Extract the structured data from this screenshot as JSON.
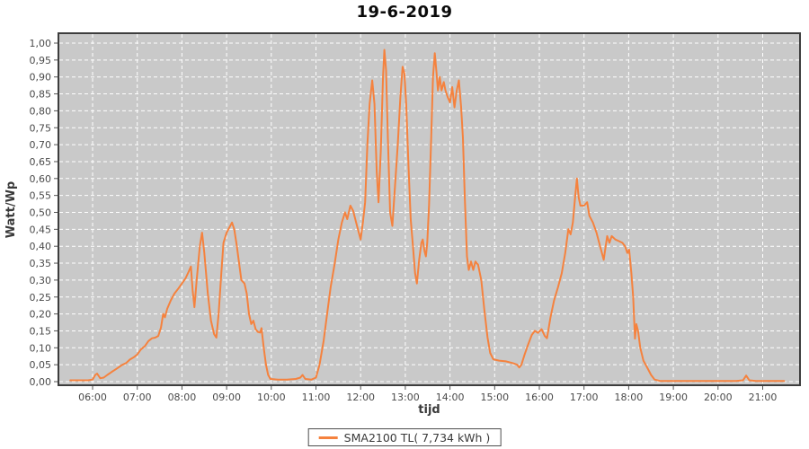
{
  "page": {
    "background": "#ffffff"
  },
  "colors": {
    "plot_background": "#c9c9c9",
    "grid": "#ffffff",
    "plot_border": "#3d3d3d",
    "tick_mark": "#555555",
    "tick_label": "#4a4a4a",
    "series_line": "#f5823e",
    "title_text": "#0a0a0a",
    "axis_title_text": "#3a3a3a"
  },
  "chart_data": {
    "type": "line",
    "title": "19-6-2019",
    "xlabel": "tijd",
    "ylabel": "Watt/Wp",
    "x_domain_hours": [
      5.235,
      21.835
    ],
    "ylim": [
      0,
      1.0
    ],
    "grid": {
      "visible": true,
      "style": "dashed",
      "color": "#ffffff",
      "x_step": "1 hour",
      "y_step": 0.05
    },
    "xticks": [
      "06:00",
      "07:00",
      "08:00",
      "09:00",
      "10:00",
      "11:00",
      "12:00",
      "13:00",
      "14:00",
      "15:00",
      "16:00",
      "17:00",
      "18:00",
      "19:00",
      "20:00",
      "21:00"
    ],
    "yticks": [
      "0,00",
      "0,05",
      "0,10",
      "0,15",
      "0,20",
      "0,25",
      "0,30",
      "0,35",
      "0,40",
      "0,45",
      "0,50",
      "0,55",
      "0,60",
      "0,65",
      "0,70",
      "0,75",
      "0,80",
      "0,85",
      "0,90",
      "0,95",
      "1,00"
    ],
    "legend": {
      "position": "bottom-center",
      "entries": [
        {
          "label": "SMA2100 TL( 7,734 kWh )",
          "color": "#f5823e"
        }
      ]
    },
    "series": [
      {
        "name": "SMA2100 TL( 7,734 kWh )",
        "color": "#f5823e",
        "points_hour_value": [
          [
            5.5,
            0.004
          ],
          [
            5.7,
            0.004
          ],
          [
            5.9,
            0.004
          ],
          [
            6.0,
            0.006
          ],
          [
            6.06,
            0.02
          ],
          [
            6.1,
            0.024
          ],
          [
            6.17,
            0.01
          ],
          [
            6.25,
            0.012
          ],
          [
            6.33,
            0.02
          ],
          [
            6.42,
            0.028
          ],
          [
            6.5,
            0.035
          ],
          [
            6.58,
            0.042
          ],
          [
            6.67,
            0.05
          ],
          [
            6.75,
            0.055
          ],
          [
            6.83,
            0.065
          ],
          [
            6.92,
            0.072
          ],
          [
            7.0,
            0.08
          ],
          [
            7.08,
            0.095
          ],
          [
            7.17,
            0.105
          ],
          [
            7.25,
            0.12
          ],
          [
            7.33,
            0.128
          ],
          [
            7.4,
            0.13
          ],
          [
            7.47,
            0.135
          ],
          [
            7.53,
            0.16
          ],
          [
            7.58,
            0.2
          ],
          [
            7.62,
            0.19
          ],
          [
            7.67,
            0.215
          ],
          [
            7.75,
            0.24
          ],
          [
            7.83,
            0.26
          ],
          [
            7.92,
            0.275
          ],
          [
            8.0,
            0.29
          ],
          [
            8.08,
            0.305
          ],
          [
            8.15,
            0.325
          ],
          [
            8.2,
            0.34
          ],
          [
            8.24,
            0.27
          ],
          [
            8.28,
            0.22
          ],
          [
            8.33,
            0.3
          ],
          [
            8.4,
            0.4
          ],
          [
            8.45,
            0.44
          ],
          [
            8.5,
            0.38
          ],
          [
            8.58,
            0.26
          ],
          [
            8.65,
            0.18
          ],
          [
            8.72,
            0.14
          ],
          [
            8.77,
            0.13
          ],
          [
            8.82,
            0.2
          ],
          [
            8.88,
            0.32
          ],
          [
            8.93,
            0.41
          ],
          [
            9.0,
            0.44
          ],
          [
            9.08,
            0.46
          ],
          [
            9.12,
            0.47
          ],
          [
            9.17,
            0.45
          ],
          [
            9.23,
            0.4
          ],
          [
            9.28,
            0.35
          ],
          [
            9.33,
            0.3
          ],
          [
            9.4,
            0.29
          ],
          [
            9.45,
            0.26
          ],
          [
            9.5,
            0.2
          ],
          [
            9.55,
            0.17
          ],
          [
            9.6,
            0.18
          ],
          [
            9.65,
            0.155
          ],
          [
            9.7,
            0.147
          ],
          [
            9.75,
            0.145
          ],
          [
            9.78,
            0.158
          ],
          [
            9.83,
            0.1
          ],
          [
            9.88,
            0.05
          ],
          [
            9.93,
            0.02
          ],
          [
            9.98,
            0.008
          ],
          [
            10.15,
            0.006
          ],
          [
            10.35,
            0.006
          ],
          [
            10.55,
            0.008
          ],
          [
            10.65,
            0.012
          ],
          [
            10.7,
            0.02
          ],
          [
            10.76,
            0.008
          ],
          [
            10.9,
            0.006
          ],
          [
            11.0,
            0.012
          ],
          [
            11.08,
            0.05
          ],
          [
            11.17,
            0.12
          ],
          [
            11.25,
            0.2
          ],
          [
            11.33,
            0.28
          ],
          [
            11.42,
            0.35
          ],
          [
            11.5,
            0.42
          ],
          [
            11.58,
            0.47
          ],
          [
            11.65,
            0.5
          ],
          [
            11.7,
            0.48
          ],
          [
            11.77,
            0.52
          ],
          [
            11.83,
            0.505
          ],
          [
            11.92,
            0.46
          ],
          [
            12.0,
            0.42
          ],
          [
            12.05,
            0.47
          ],
          [
            12.1,
            0.53
          ],
          [
            12.15,
            0.7
          ],
          [
            12.2,
            0.82
          ],
          [
            12.26,
            0.89
          ],
          [
            12.31,
            0.82
          ],
          [
            12.36,
            0.62
          ],
          [
            12.4,
            0.53
          ],
          [
            12.45,
            0.68
          ],
          [
            12.5,
            0.9
          ],
          [
            12.53,
            0.98
          ],
          [
            12.57,
            0.92
          ],
          [
            12.61,
            0.72
          ],
          [
            12.66,
            0.5
          ],
          [
            12.71,
            0.46
          ],
          [
            12.77,
            0.58
          ],
          [
            12.83,
            0.7
          ],
          [
            12.89,
            0.84
          ],
          [
            12.94,
            0.93
          ],
          [
            12.98,
            0.91
          ],
          [
            13.02,
            0.82
          ],
          [
            13.07,
            0.64
          ],
          [
            13.12,
            0.48
          ],
          [
            13.17,
            0.4
          ],
          [
            13.22,
            0.32
          ],
          [
            13.26,
            0.29
          ],
          [
            13.31,
            0.36
          ],
          [
            13.36,
            0.41
          ],
          [
            13.39,
            0.42
          ],
          [
            13.43,
            0.385
          ],
          [
            13.46,
            0.37
          ],
          [
            13.49,
            0.41
          ],
          [
            13.53,
            0.52
          ],
          [
            13.58,
            0.72
          ],
          [
            13.62,
            0.9
          ],
          [
            13.66,
            0.97
          ],
          [
            13.7,
            0.91
          ],
          [
            13.73,
            0.86
          ],
          [
            13.77,
            0.9
          ],
          [
            13.81,
            0.86
          ],
          [
            13.86,
            0.885
          ],
          [
            13.9,
            0.86
          ],
          [
            13.95,
            0.84
          ],
          [
            14.0,
            0.825
          ],
          [
            14.05,
            0.87
          ],
          [
            14.1,
            0.81
          ],
          [
            14.15,
            0.86
          ],
          [
            14.2,
            0.89
          ],
          [
            14.25,
            0.81
          ],
          [
            14.29,
            0.72
          ],
          [
            14.33,
            0.55
          ],
          [
            14.38,
            0.37
          ],
          [
            14.42,
            0.33
          ],
          [
            14.47,
            0.355
          ],
          [
            14.52,
            0.33
          ],
          [
            14.57,
            0.355
          ],
          [
            14.63,
            0.345
          ],
          [
            14.7,
            0.3
          ],
          [
            14.77,
            0.21
          ],
          [
            14.84,
            0.13
          ],
          [
            14.9,
            0.085
          ],
          [
            14.97,
            0.066
          ],
          [
            15.1,
            0.062
          ],
          [
            15.25,
            0.06
          ],
          [
            15.4,
            0.055
          ],
          [
            15.5,
            0.05
          ],
          [
            15.55,
            0.042
          ],
          [
            15.6,
            0.05
          ],
          [
            15.67,
            0.08
          ],
          [
            15.75,
            0.11
          ],
          [
            15.83,
            0.138
          ],
          [
            15.9,
            0.15
          ],
          [
            15.97,
            0.144
          ],
          [
            16.05,
            0.155
          ],
          [
            16.12,
            0.135
          ],
          [
            16.17,
            0.128
          ],
          [
            16.25,
            0.19
          ],
          [
            16.33,
            0.24
          ],
          [
            16.42,
            0.28
          ],
          [
            16.5,
            0.32
          ],
          [
            16.58,
            0.38
          ],
          [
            16.65,
            0.45
          ],
          [
            16.7,
            0.435
          ],
          [
            16.75,
            0.47
          ],
          [
            16.8,
            0.545
          ],
          [
            16.84,
            0.6
          ],
          [
            16.88,
            0.545
          ],
          [
            16.92,
            0.52
          ],
          [
            17.0,
            0.52
          ],
          [
            17.07,
            0.53
          ],
          [
            17.12,
            0.49
          ],
          [
            17.2,
            0.47
          ],
          [
            17.28,
            0.44
          ],
          [
            17.36,
            0.4
          ],
          [
            17.44,
            0.36
          ],
          [
            17.52,
            0.43
          ],
          [
            17.57,
            0.41
          ],
          [
            17.62,
            0.43
          ],
          [
            17.7,
            0.42
          ],
          [
            17.78,
            0.415
          ],
          [
            17.86,
            0.41
          ],
          [
            17.92,
            0.4
          ],
          [
            17.97,
            0.38
          ],
          [
            18.01,
            0.39
          ],
          [
            18.06,
            0.32
          ],
          [
            18.1,
            0.25
          ],
          [
            18.14,
            0.127
          ],
          [
            18.17,
            0.17
          ],
          [
            18.21,
            0.15
          ],
          [
            18.26,
            0.1
          ],
          [
            18.33,
            0.062
          ],
          [
            18.42,
            0.04
          ],
          [
            18.5,
            0.02
          ],
          [
            18.58,
            0.006
          ],
          [
            18.7,
            0.002
          ],
          [
            19.0,
            0.002
          ],
          [
            19.5,
            0.002
          ],
          [
            20.0,
            0.002
          ],
          [
            20.4,
            0.002
          ],
          [
            20.56,
            0.004
          ],
          [
            20.63,
            0.018
          ],
          [
            20.7,
            0.004
          ],
          [
            20.85,
            0.002
          ],
          [
            21.1,
            0.002
          ],
          [
            21.48,
            0.002
          ]
        ]
      }
    ]
  }
}
